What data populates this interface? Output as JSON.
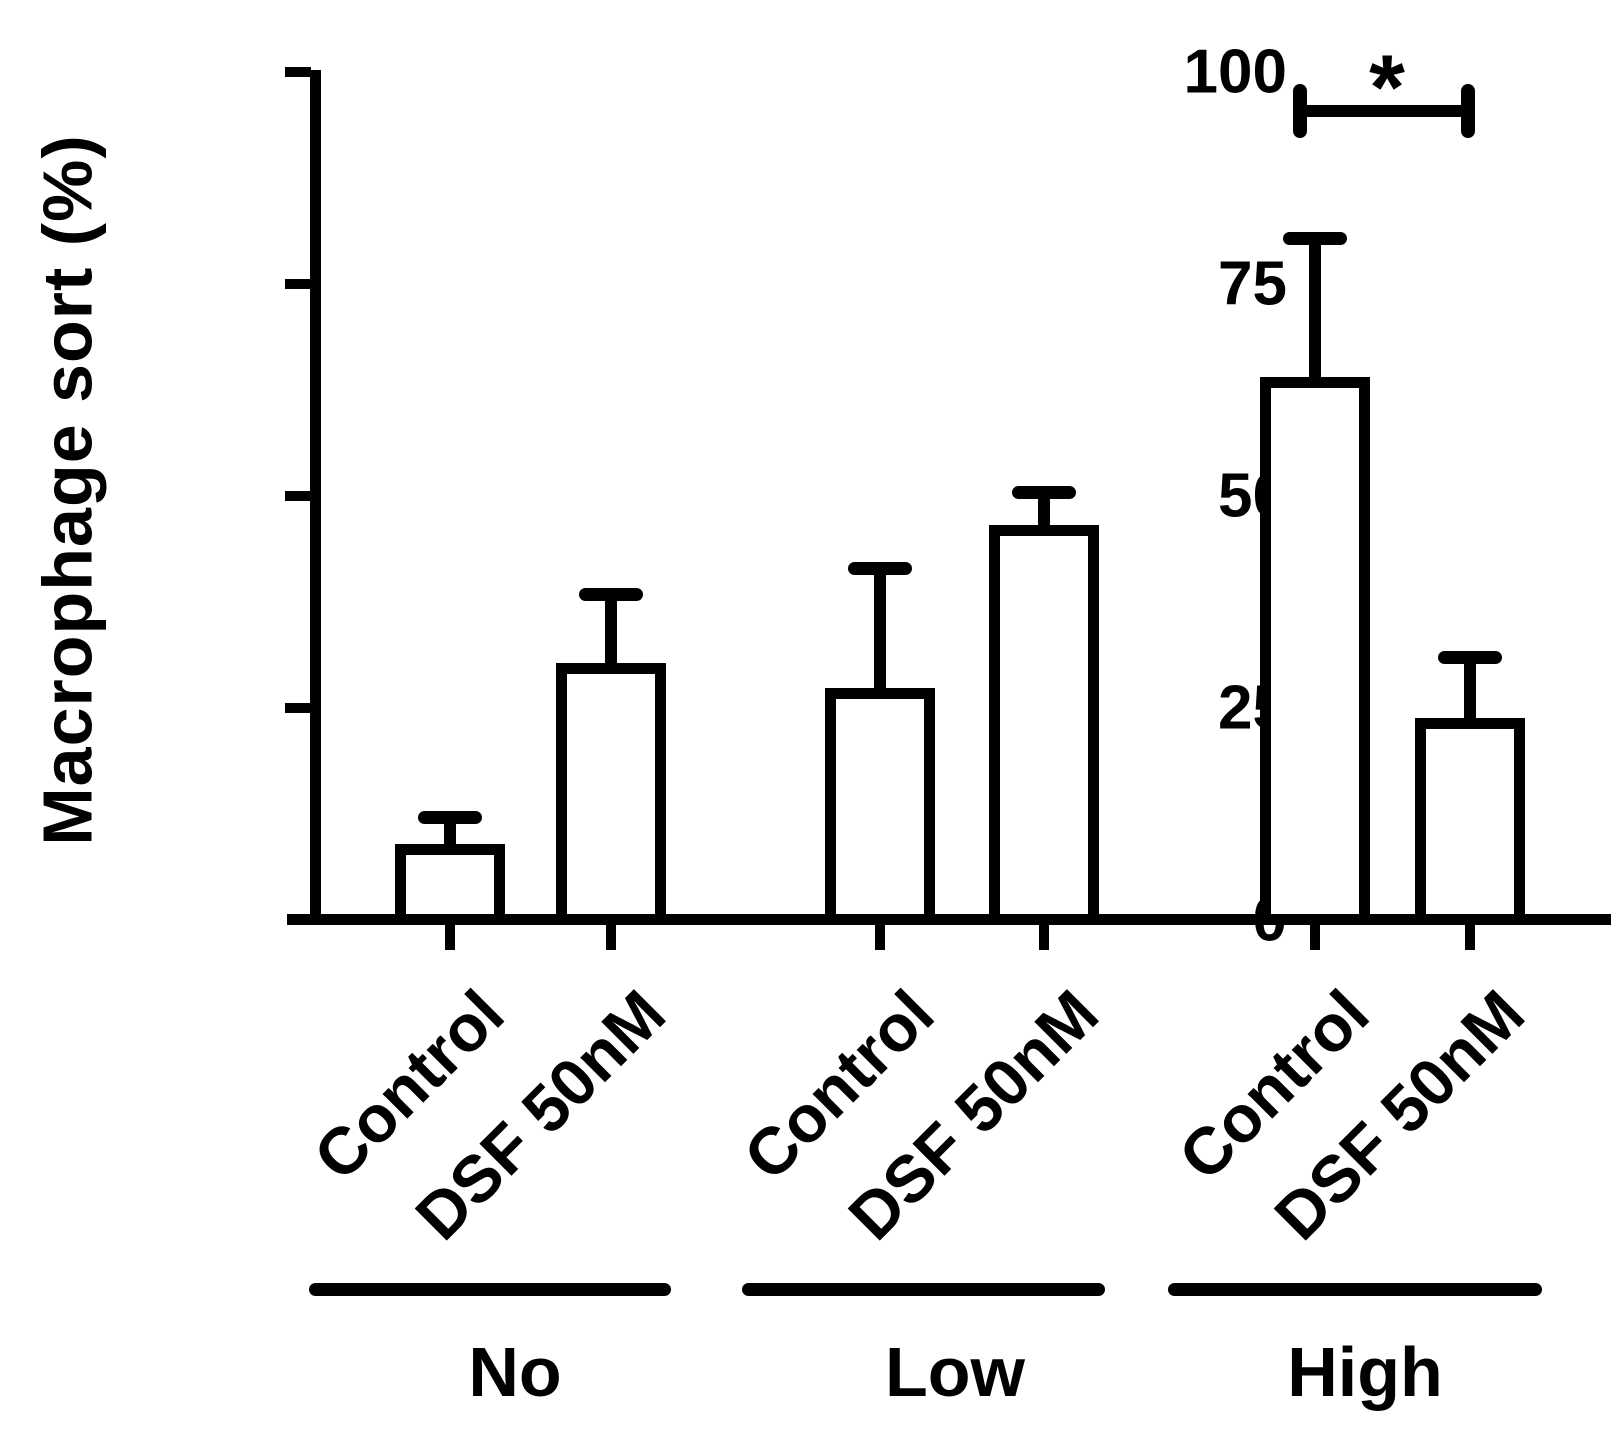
{
  "figure": {
    "background": "#ffffff",
    "ink_color": "#000000"
  },
  "chart_data": {
    "type": "bar",
    "title": "",
    "xlabel": "",
    "ylabel": "Macrophage sort (%)",
    "ylim": [
      0,
      100
    ],
    "yticks": [
      0,
      25,
      50,
      75,
      100
    ],
    "grid": false,
    "legend": "none",
    "bar_fill": "#ffffff",
    "bar_edge": "#000000",
    "error_bar_style": "upper SEM with cap",
    "groups": [
      "No",
      "Low",
      "High"
    ],
    "conditions": [
      "Control",
      "DSF 50nM"
    ],
    "series": [
      {
        "group": "No",
        "condition": "Control",
        "value": 9.0,
        "error_upper": 3.2
      },
      {
        "group": "No",
        "condition": "DSF 50nM",
        "value": 30.3,
        "error_upper": 8.1
      },
      {
        "group": "Low",
        "condition": "Control",
        "value": 27.3,
        "error_upper": 14.2
      },
      {
        "group": "Low",
        "condition": "DSF 50nM",
        "value": 46.6,
        "error_upper": 3.9
      },
      {
        "group": "High",
        "condition": "Control",
        "value": 64.0,
        "error_upper": 16.4
      },
      {
        "group": "High",
        "condition": "DSF 50nM",
        "value": 23.8,
        "error_upper": 7.2
      }
    ],
    "significance": {
      "label": "*",
      "between": [
        "High / Control",
        "High / DSF 50nM"
      ]
    }
  }
}
